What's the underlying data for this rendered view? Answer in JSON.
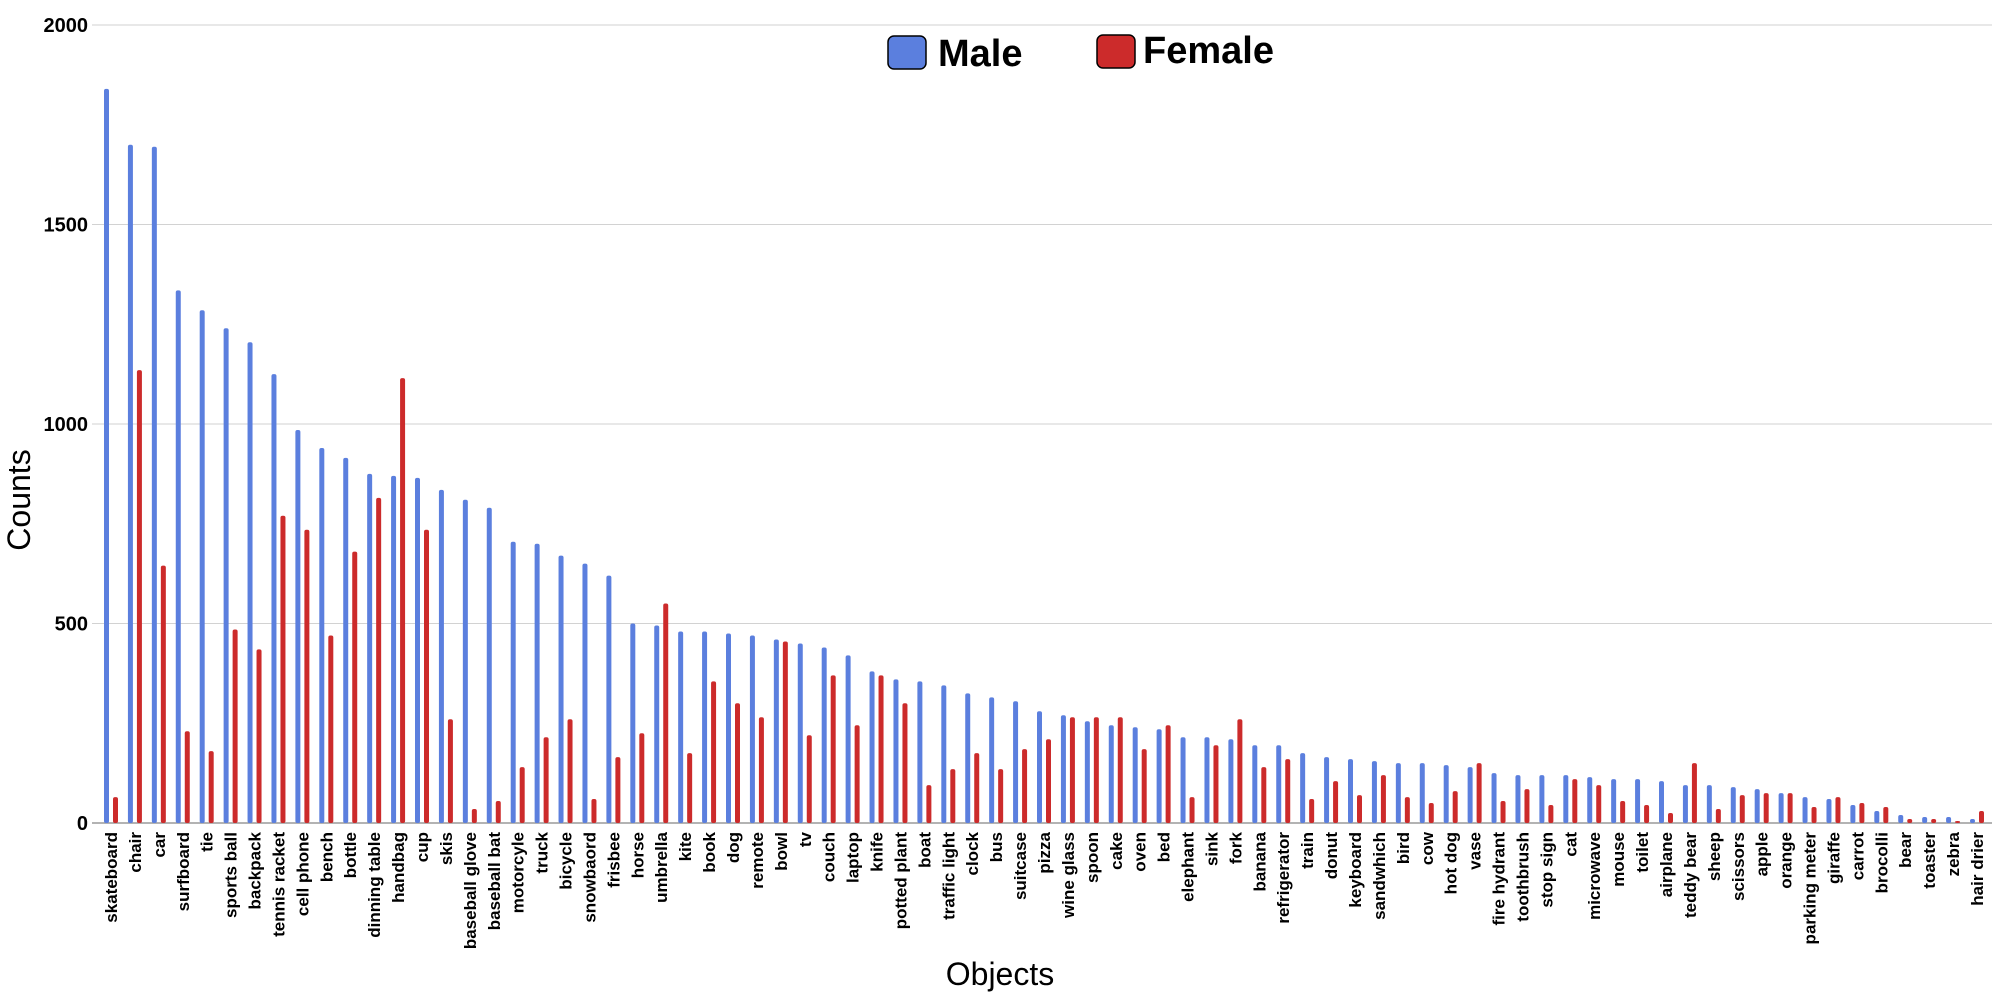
{
  "chart_data": {
    "type": "bar",
    "title": "",
    "xlabel": "Objects",
    "ylabel": "Counts",
    "ylim": [
      0,
      2000
    ],
    "yticks": [
      0,
      500,
      1000,
      1500,
      2000
    ],
    "grid": true,
    "legend_position": "top-center",
    "categories": [
      "skateboard",
      "chair",
      "car",
      "surfboard",
      "tie",
      "sports ball",
      "backpack",
      "tennis racket",
      "cell phone",
      "bench",
      "bottle",
      "dinning table",
      "handbag",
      "cup",
      "skis",
      "baseball glove",
      "baseball bat",
      "motorcyle",
      "truck",
      "bicycle",
      "snowbaord",
      "frisbee",
      "horse",
      "umbrella",
      "kite",
      "book",
      "dog",
      "remote",
      "bowl",
      "tv",
      "couch",
      "laptop",
      "knife",
      "potted plant",
      "boat",
      "traffic light",
      "clock",
      "bus",
      "suitcase",
      "pizza",
      "wine glass",
      "spoon",
      "cake",
      "oven",
      "bed",
      "elephant",
      "sink",
      "fork",
      "banana",
      "refrigerator",
      "train",
      "donut",
      "keyboard",
      "sandwhich",
      "bird",
      "cow",
      "hot dog",
      "vase",
      "fire hydrant",
      "toothbrush",
      "stop sign",
      "cat",
      "microwave",
      "mouse",
      "toilet",
      "airplane",
      "teddy bear",
      "sheep",
      "scissors",
      "apple",
      "orange",
      "parking meter",
      "giraffe",
      "carrot",
      "brocolli",
      "bear",
      "toaster",
      "zebra",
      "hair drier"
    ],
    "series": [
      {
        "name": "Male",
        "color": "#5b7fde",
        "values": [
          1840,
          1700,
          1695,
          1335,
          1285,
          1240,
          1205,
          1125,
          985,
          940,
          915,
          875,
          870,
          865,
          835,
          810,
          790,
          705,
          700,
          670,
          650,
          620,
          500,
          495,
          480,
          480,
          475,
          470,
          460,
          450,
          440,
          420,
          380,
          360,
          355,
          345,
          325,
          315,
          305,
          280,
          270,
          255,
          245,
          240,
          235,
          215,
          215,
          210,
          195,
          195,
          175,
          165,
          160,
          155,
          150,
          150,
          145,
          140,
          125,
          120,
          120,
          120,
          115,
          110,
          110,
          105,
          95,
          95,
          90,
          85,
          75,
          65,
          60,
          45,
          30,
          20,
          15,
          15,
          10
        ]
      },
      {
        "name": "Female",
        "color": "#cc2b2b",
        "values": [
          65,
          1135,
          645,
          230,
          180,
          485,
          435,
          770,
          735,
          470,
          680,
          815,
          1115,
          735,
          260,
          35,
          55,
          140,
          215,
          260,
          60,
          165,
          225,
          550,
          175,
          355,
          300,
          265,
          455,
          220,
          370,
          245,
          370,
          300,
          95,
          135,
          175,
          135,
          185,
          210,
          265,
          265,
          265,
          185,
          245,
          65,
          195,
          260,
          140,
          160,
          60,
          105,
          70,
          120,
          65,
          50,
          80,
          150,
          55,
          85,
          45,
          110,
          95,
          55,
          45,
          25,
          150,
          35,
          70,
          75,
          75,
          40,
          65,
          50,
          40,
          10,
          10,
          5,
          30
        ]
      }
    ]
  }
}
